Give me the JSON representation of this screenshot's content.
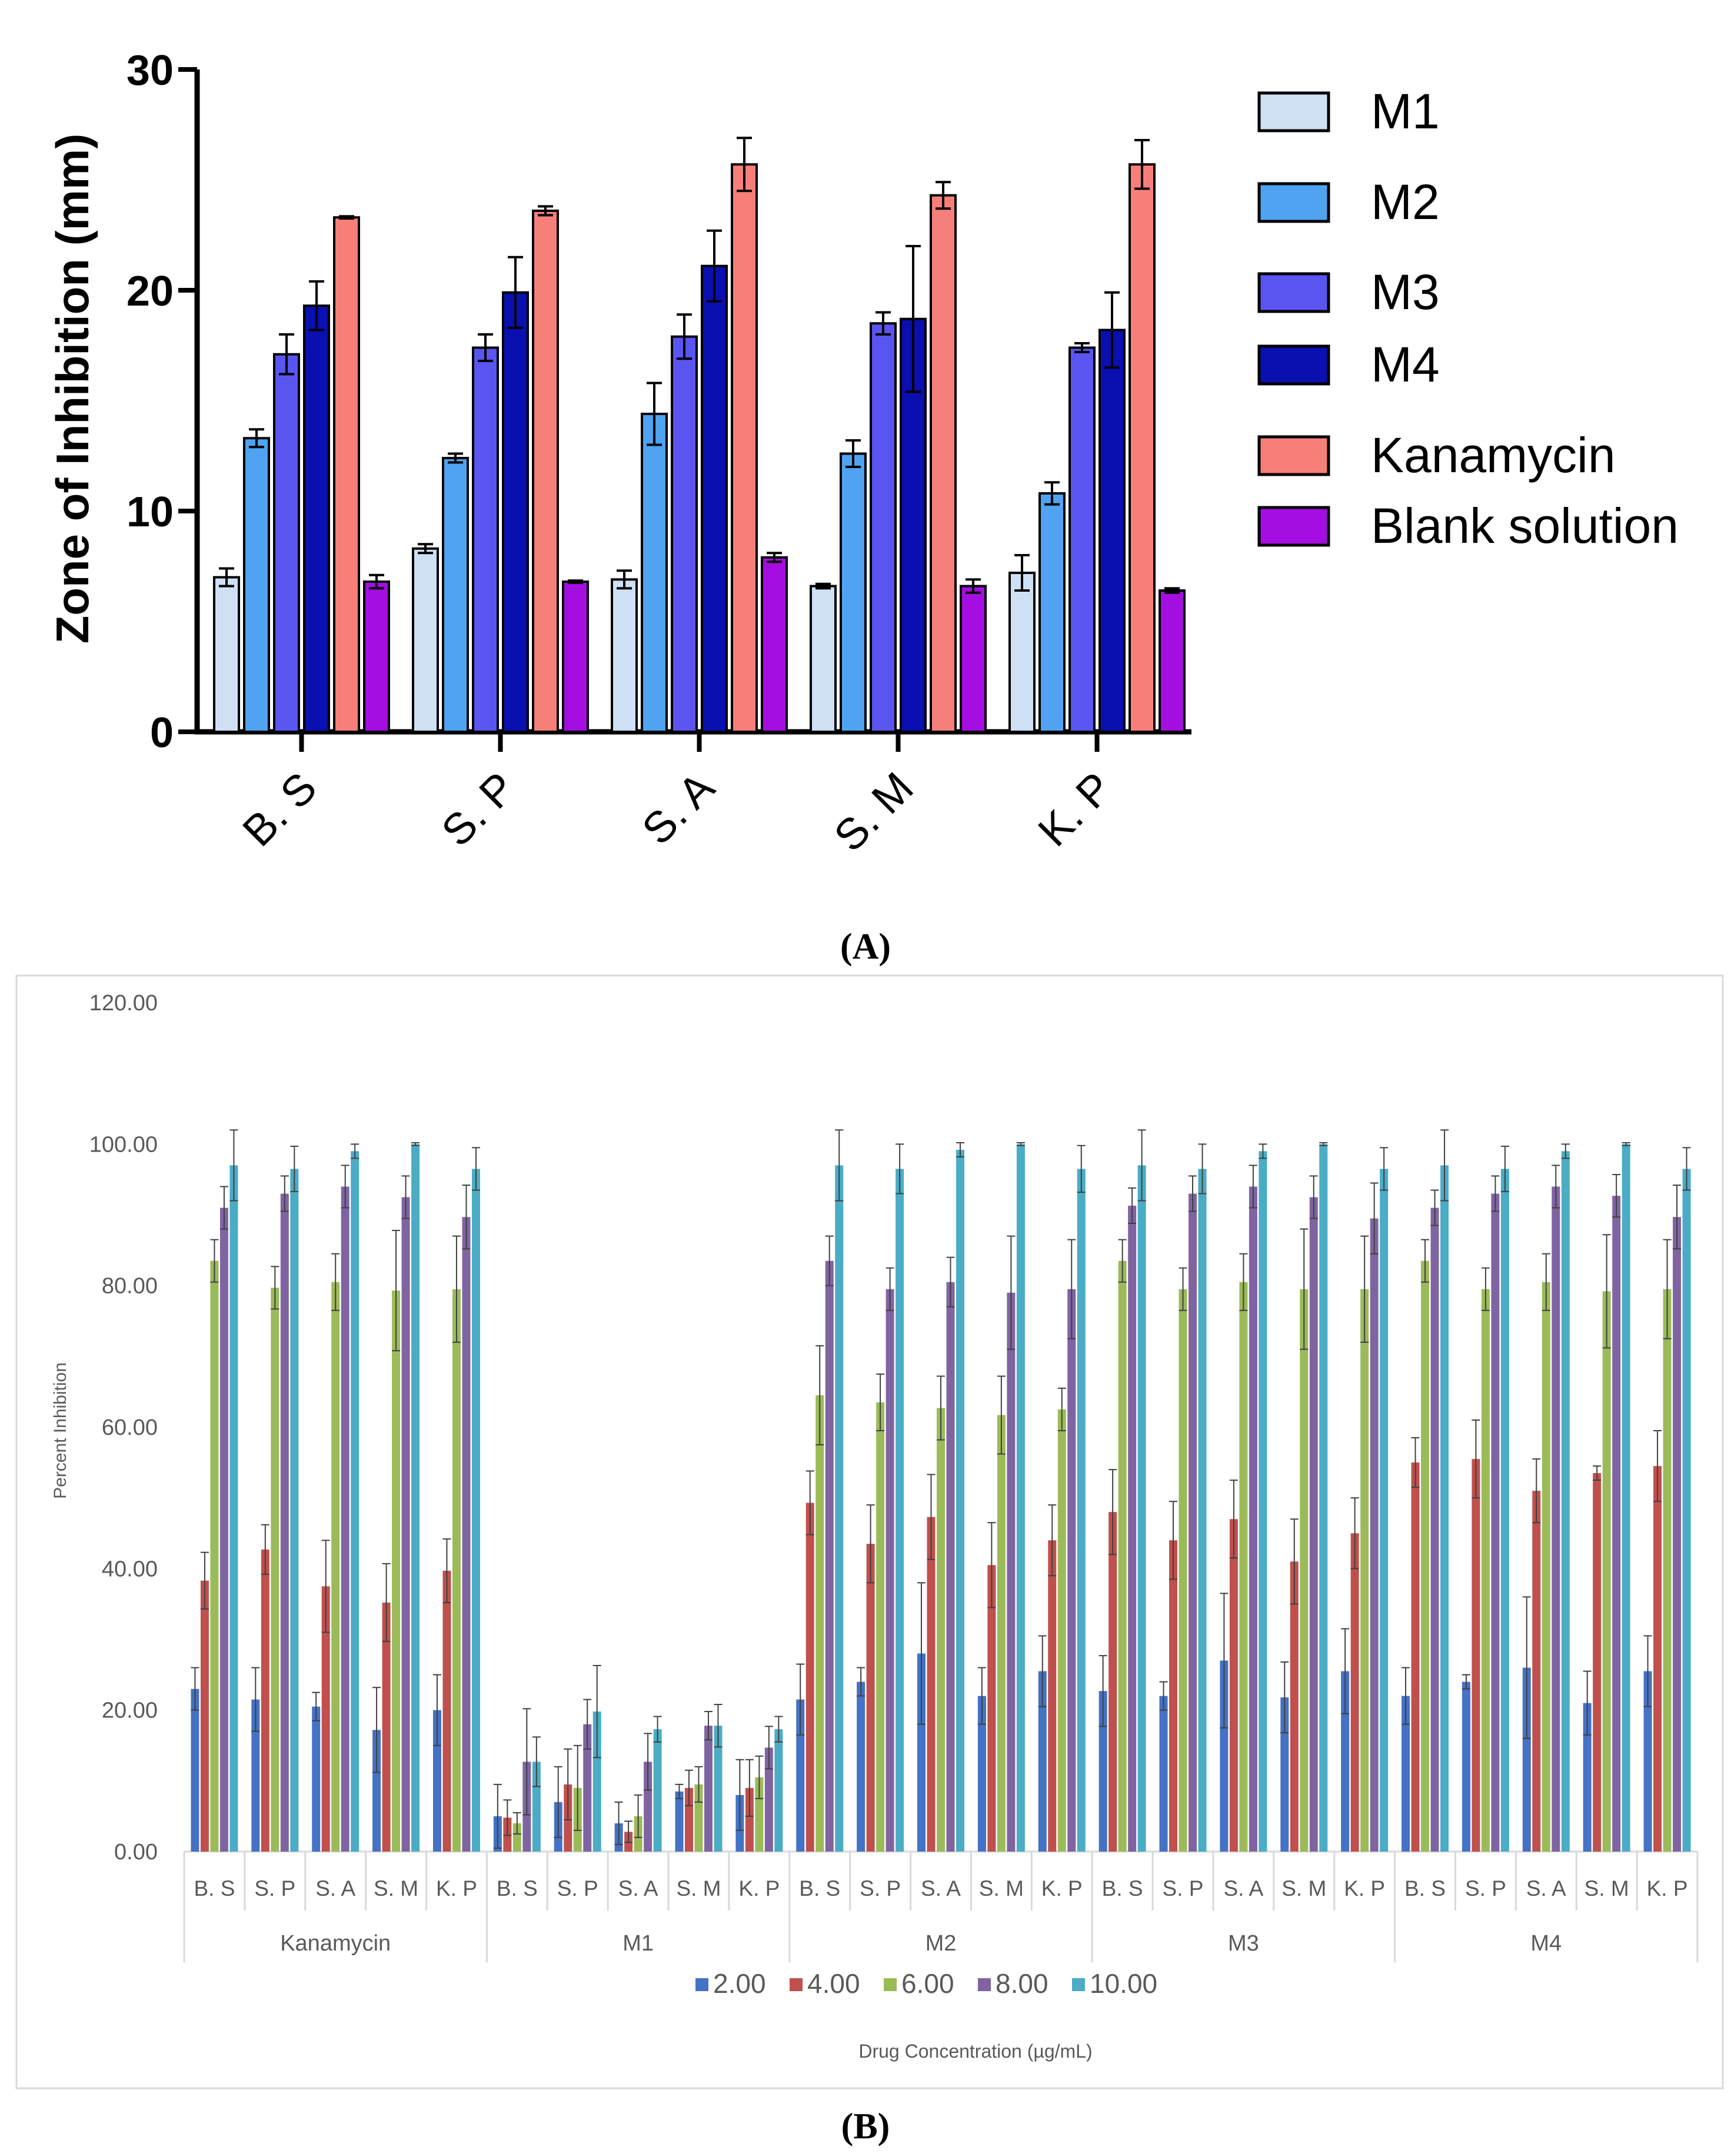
{
  "chart_data": [
    {
      "id": "A",
      "type": "bar",
      "panel_label": "(A)",
      "ylabel": "Zone of Inhibition (mm)",
      "xlabel": "",
      "ylim": [
        0,
        30
      ],
      "yticks": [
        "0",
        "10",
        "20",
        "30"
      ],
      "categories": [
        "B. S",
        "S. P",
        "S. A",
        "S. M",
        "K. P"
      ],
      "legend_position": "right",
      "series": [
        {
          "name": "M1",
          "color": "#cfe0f5",
          "values": [
            7.0,
            8.3,
            6.9,
            6.6,
            7.2
          ],
          "errors": [
            0.4,
            0.2,
            0.4,
            0.1,
            0.8
          ]
        },
        {
          "name": "M2",
          "color": "#4fa3f0",
          "values": [
            13.3,
            12.4,
            14.4,
            12.6,
            10.8
          ],
          "errors": [
            0.4,
            0.2,
            1.4,
            0.6,
            0.5
          ]
        },
        {
          "name": "M3",
          "color": "#5a55f0",
          "values": [
            17.1,
            17.4,
            17.9,
            18.5,
            17.4
          ],
          "errors": [
            0.9,
            0.6,
            1.0,
            0.5,
            0.2
          ]
        },
        {
          "name": "M4",
          "color": "#0a0fb0",
          "values": [
            19.3,
            19.9,
            21.1,
            18.7,
            18.2
          ],
          "errors": [
            1.1,
            1.6,
            1.6,
            3.3,
            1.7
          ]
        },
        {
          "name": "Kanamycin",
          "color": "#f77f7a",
          "values": [
            23.3,
            23.6,
            25.7,
            24.3,
            25.7
          ],
          "errors": [
            0.05,
            0.2,
            1.2,
            0.6,
            1.1
          ]
        },
        {
          "name": "Blank solution",
          "color": "#a40ee0",
          "values": [
            6.8,
            6.8,
            7.9,
            6.6,
            6.4
          ],
          "errors": [
            0.3,
            0.05,
            0.2,
            0.3,
            0.1
          ]
        }
      ]
    },
    {
      "id": "B",
      "type": "bar",
      "panel_label": "(B)",
      "ylabel": "Percent Inhibition",
      "xlabel": "Drug Concentration (µg/mL)",
      "ylim": [
        0,
        120
      ],
      "yticks": [
        "0.00",
        "20.00",
        "40.00",
        "60.00",
        "80.00",
        "100.00",
        "120.00"
      ],
      "groups": [
        "Kanamycin",
        "M1",
        "M2",
        "M3",
        "M4"
      ],
      "categories": [
        "B. S",
        "S. P",
        "S. A",
        "S. M",
        "K. P"
      ],
      "legend_position": "bottom",
      "series": [
        {
          "name": "2.00",
          "color": "#4472c4",
          "values": [
            [
              23,
              21.5,
              20.5,
              17.2,
              20
            ],
            [
              5,
              7,
              4,
              8.5,
              8
            ],
            [
              21.5,
              24,
              28,
              22,
              25.5
            ],
            [
              22.7,
              22,
              27,
              21.8,
              25.5
            ],
            [
              22,
              24,
              26,
              21,
              25.5
            ]
          ],
          "errors": [
            [
              3,
              4.5,
              2,
              6,
              5
            ],
            [
              4.5,
              5,
              3,
              1,
              5
            ],
            [
              5,
              2,
              10,
              4,
              5
            ],
            [
              5,
              2,
              9.5,
              5,
              6
            ],
            [
              4,
              1,
              10,
              4.5,
              5
            ]
          ]
        },
        {
          "name": "4.00",
          "color": "#c0504d",
          "values": [
            [
              38.3,
              42.7,
              37.5,
              35.2,
              39.7
            ],
            [
              4.8,
              9.5,
              2.8,
              9,
              9
            ],
            [
              49.3,
              43.5,
              47.3,
              40.5,
              44
            ],
            [
              48,
              44,
              47,
              41,
              45
            ],
            [
              55,
              55.5,
              51,
              53.5,
              54.5
            ]
          ],
          "errors": [
            [
              4,
              3.5,
              6.5,
              5.5,
              4.5
            ],
            [
              2.5,
              5,
              1.5,
              2.5,
              4
            ],
            [
              4.5,
              5.5,
              6,
              6,
              5
            ],
            [
              6,
              5.5,
              5.5,
              6,
              5
            ],
            [
              3.5,
              5.5,
              4.5,
              1,
              5
            ]
          ]
        },
        {
          "name": "6.00",
          "color": "#9bbb59",
          "values": [
            [
              83.5,
              79.7,
              80.5,
              79.3,
              79.5
            ],
            [
              4,
              9,
              5,
              9.5,
              10.5
            ],
            [
              64.5,
              63.5,
              62.7,
              61.7,
              62.5
            ],
            [
              83.5,
              79.5,
              80.5,
              79.5,
              79.5
            ],
            [
              83.5,
              79.5,
              80.5,
              79.2,
              79.5
            ]
          ],
          "errors": [
            [
              3,
              3,
              4,
              8.5,
              7.5
            ],
            [
              1.5,
              6,
              3,
              2.5,
              3
            ],
            [
              7,
              4,
              4.5,
              5.5,
              3
            ],
            [
              3,
              3,
              4,
              8.5,
              7.5
            ],
            [
              3,
              3,
              4,
              8,
              7
            ]
          ]
        },
        {
          "name": "8.00",
          "color": "#8064a2",
          "values": [
            [
              91,
              93,
              94,
              92.5,
              89.7
            ],
            [
              12.7,
              18,
              12.7,
              17.8,
              14.7
            ],
            [
              83.5,
              79.5,
              80.5,
              79,
              79.5
            ],
            [
              91.3,
              93,
              94,
              92.5,
              89.5
            ],
            [
              91,
              93,
              94,
              92.7,
              89.7
            ]
          ],
          "errors": [
            [
              3,
              2.5,
              3,
              3,
              4.5
            ],
            [
              7.5,
              3.5,
              4,
              2,
              3
            ],
            [
              3.5,
              3,
              3.5,
              8,
              7
            ],
            [
              2.5,
              2.5,
              3,
              3,
              5
            ],
            [
              2.5,
              2.5,
              3,
              3,
              4.5
            ]
          ]
        },
        {
          "name": "10.00",
          "color": "#4bacc6",
          "values": [
            [
              97,
              96.5,
              99,
              100,
              96.5
            ],
            [
              12.7,
              19.8,
              17.3,
              17.8,
              17.3
            ],
            [
              97,
              96.5,
              99.2,
              100,
              96.5
            ],
            [
              97,
              96.5,
              99,
              100,
              96.5
            ],
            [
              97,
              96.5,
              99,
              100,
              96.5
            ]
          ],
          "errors": [
            [
              5,
              3.2,
              1,
              0.2,
              3
            ],
            [
              3.5,
              6.5,
              1.8,
              3,
              1.8
            ],
            [
              5,
              3.5,
              1,
              0.2,
              3.3
            ],
            [
              5,
              3.5,
              1,
              0.2,
              3
            ],
            [
              5,
              3.2,
              1,
              0.2,
              3
            ]
          ]
        }
      ]
    }
  ]
}
